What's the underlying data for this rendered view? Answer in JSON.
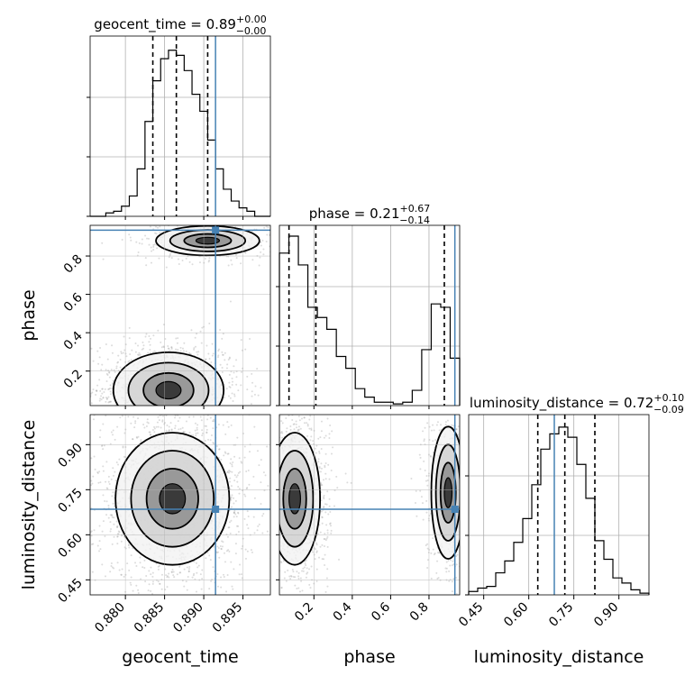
{
  "chart_data": {
    "type": "corner",
    "parameters": [
      {
        "key": "geocent_time",
        "label": "geocent_time",
        "range": [
          0.8755,
          0.8985
        ],
        "ticks": [
          "0.880",
          "0.885",
          "0.890",
          "0.895"
        ],
        "tick_values": [
          0.88,
          0.885,
          0.89,
          0.895
        ],
        "injection": 0.8915,
        "quantiles": [
          0.8835,
          0.8865,
          0.8905
        ],
        "title": {
          "main": "geocent_time = 0.89",
          "plus": "+0.00",
          "minus": "−0.00"
        },
        "hist": [
          0.0,
          0.0,
          0.02,
          0.03,
          0.06,
          0.12,
          0.28,
          0.56,
          0.8,
          0.93,
          0.98,
          0.95,
          0.86,
          0.72,
          0.62,
          0.45,
          0.28,
          0.16,
          0.09,
          0.05,
          0.03,
          0.0,
          0.0
        ]
      },
      {
        "key": "phase",
        "label": "phase",
        "range": [
          0.02,
          0.96
        ],
        "ticks": [
          "0.2",
          "0.4",
          "0.6",
          "0.8"
        ],
        "tick_values": [
          0.2,
          0.4,
          0.6,
          0.8
        ],
        "injection": 0.935,
        "quantiles": [
          0.07,
          0.21,
          0.88
        ],
        "title": {
          "main": "phase = 0.21",
          "plus": "+0.67",
          "minus": "−0.14"
        },
        "hist": [
          0.9,
          1.0,
          0.83,
          0.58,
          0.52,
          0.45,
          0.29,
          0.22,
          0.1,
          0.05,
          0.02,
          0.02,
          0.01,
          0.02,
          0.09,
          0.33,
          0.6,
          0.58,
          0.28
        ]
      },
      {
        "key": "luminosity_distance",
        "label": "luminosity_distance",
        "range": [
          0.4,
          1.0
        ],
        "ticks": [
          "0.45",
          "0.60",
          "0.75",
          "0.90"
        ],
        "tick_values": [
          0.45,
          0.6,
          0.75,
          0.9
        ],
        "injection": 0.685,
        "quantiles": [
          0.63,
          0.72,
          0.82
        ],
        "title": {
          "main": "luminosity_distance = 0.72",
          "plus": "+0.10",
          "minus": "−0.09"
        },
        "hist": [
          0.02,
          0.04,
          0.05,
          0.13,
          0.2,
          0.31,
          0.45,
          0.65,
          0.86,
          0.95,
          0.99,
          0.93,
          0.77,
          0.57,
          0.32,
          0.21,
          0.1,
          0.07,
          0.03,
          0.01
        ]
      }
    ],
    "injection_color": "#4682b4",
    "hist_color": "#000000",
    "quantile_style": "dashed",
    "grid": true
  }
}
